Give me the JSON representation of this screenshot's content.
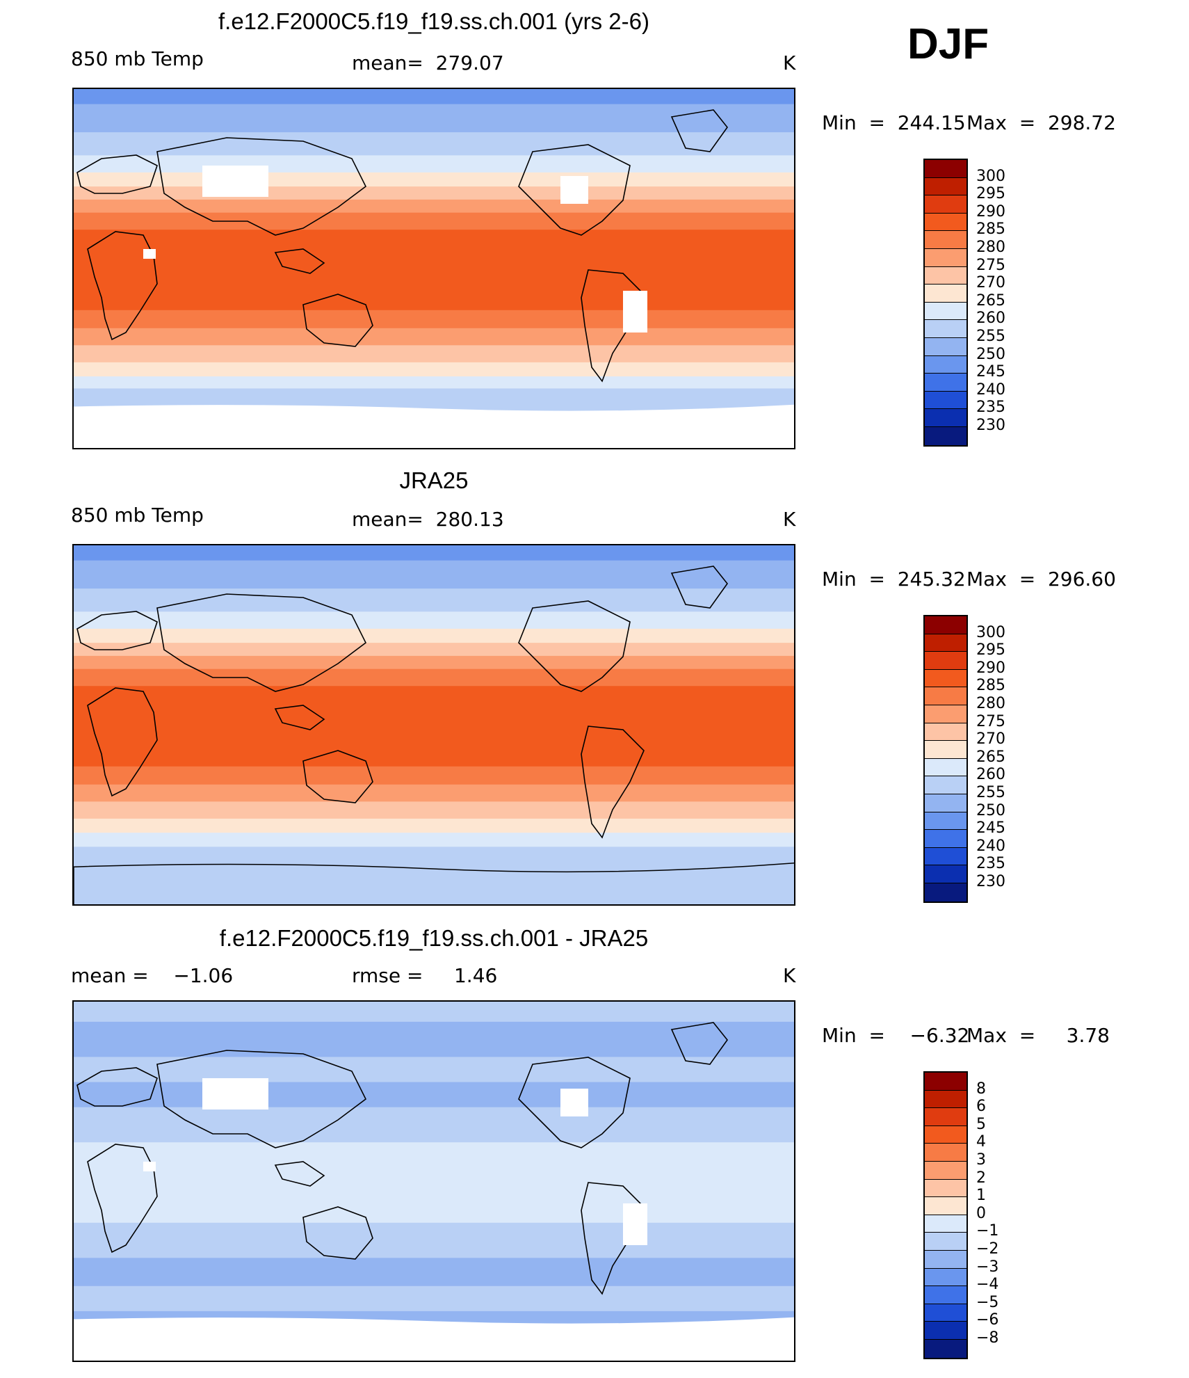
{
  "season": "DJF",
  "chart_data": [
    {
      "type": "heatmap",
      "title": "f.e12.F2000C5.f19_f19.ss.ch.001 (yrs 2-6)",
      "left_label": "850 mb Temp",
      "center_label": "mean=  279.07",
      "units": "K",
      "stats": {
        "min_label": "Min  =  244.15",
        "max_label": "Max  =  298.72",
        "min": 244.15,
        "max": 298.72,
        "mean": 279.07
      },
      "colorbar_levels": [
        "300",
        "295",
        "290",
        "285",
        "280",
        "275",
        "270",
        "265",
        "260",
        "255",
        "250",
        "245",
        "240",
        "235",
        "230"
      ],
      "colors": [
        "#8c0000",
        "#bf1f00",
        "#e03c10",
        "#f25a1e",
        "#f77b45",
        "#fb9d70",
        "#fdc4a6",
        "#fde6d2",
        "#dbe9fa",
        "#b9d0f5",
        "#93b4f1",
        "#6a96ee",
        "#3f72e8",
        "#1f4fd6",
        "#0b2fb0",
        "#081a7e"
      ],
      "zonal_profile": [
        {
          "lat": 90,
          "band": 11
        },
        {
          "lat": 75,
          "band": 10
        },
        {
          "lat": 62,
          "band": 9
        },
        {
          "lat": 52,
          "band": 8
        },
        {
          "lat": 45,
          "band": 7
        },
        {
          "lat": 38,
          "band": 6
        },
        {
          "lat": 32,
          "band": 5
        },
        {
          "lat": 25,
          "band": 4
        },
        {
          "lat": 15,
          "band": 3
        },
        {
          "lat": 0,
          "band": 3
        },
        {
          "lat": -15,
          "band": 3
        },
        {
          "lat": -25,
          "band": 4
        },
        {
          "lat": -33,
          "band": 5
        },
        {
          "lat": -42,
          "band": 6
        },
        {
          "lat": -50,
          "band": 7
        },
        {
          "lat": -56,
          "band": 8
        },
        {
          "lat": -62,
          "band": 9
        },
        {
          "lat": -70,
          "band": 9
        }
      ]
    },
    {
      "type": "heatmap",
      "title": "JRA25",
      "left_label": "850 mb Temp",
      "center_label": "mean=  280.13",
      "units": "K",
      "stats": {
        "min_label": "Min  =  245.32",
        "max_label": "Max  =  296.60",
        "min": 245.32,
        "max": 296.6,
        "mean": 280.13
      },
      "colorbar_levels": [
        "300",
        "295",
        "290",
        "285",
        "280",
        "275",
        "270",
        "265",
        "260",
        "255",
        "250",
        "245",
        "240",
        "235",
        "230"
      ],
      "colors": [
        "#8c0000",
        "#bf1f00",
        "#e03c10",
        "#f25a1e",
        "#f77b45",
        "#fb9d70",
        "#fdc4a6",
        "#fde6d2",
        "#dbe9fa",
        "#b9d0f5",
        "#93b4f1",
        "#6a96ee",
        "#3f72e8",
        "#1f4fd6",
        "#0b2fb0",
        "#081a7e"
      ],
      "zonal_profile": [
        {
          "lat": 90,
          "band": 11
        },
        {
          "lat": 75,
          "band": 10
        },
        {
          "lat": 62,
          "band": 9
        },
        {
          "lat": 52,
          "band": 8
        },
        {
          "lat": 45,
          "band": 7
        },
        {
          "lat": 38,
          "band": 6
        },
        {
          "lat": 32,
          "band": 5
        },
        {
          "lat": 25,
          "band": 4
        },
        {
          "lat": 15,
          "band": 3
        },
        {
          "lat": 0,
          "band": 3
        },
        {
          "lat": -15,
          "band": 3
        },
        {
          "lat": -25,
          "band": 4
        },
        {
          "lat": -33,
          "band": 5
        },
        {
          "lat": -42,
          "band": 6
        },
        {
          "lat": -50,
          "band": 7
        },
        {
          "lat": -56,
          "band": 8
        },
        {
          "lat": -64,
          "band": 9
        },
        {
          "lat": -75,
          "band": 9
        }
      ]
    },
    {
      "type": "heatmap",
      "title": "f.e12.F2000C5.f19_f19.ss.ch.001 - JRA25",
      "left_label": "mean =    −1.06",
      "center_label": "rmse =     1.46",
      "units": "K",
      "stats": {
        "min_label": "Min  =    −6.32",
        "max_label": "Max  =     3.78",
        "min": -6.32,
        "max": 3.78,
        "mean": -1.06,
        "rmse": 1.46
      },
      "colorbar_levels": [
        "8",
        "6",
        "5",
        "4",
        "3",
        "2",
        "1",
        "0",
        "−1",
        "−2",
        "−3",
        "−4",
        "−5",
        "−6",
        "−8"
      ],
      "colors": [
        "#8c0000",
        "#bf1f00",
        "#e03c10",
        "#f25a1e",
        "#f77b45",
        "#fb9d70",
        "#fdc4a6",
        "#fde6d2",
        "#dbe9fa",
        "#b9d0f5",
        "#93b4f1",
        "#6a96ee",
        "#3f72e8",
        "#1f4fd6",
        "#0b2fb0",
        "#081a7e"
      ],
      "zonal_profile": [
        {
          "lat": 90,
          "band": 9
        },
        {
          "lat": 70,
          "band": 10
        },
        {
          "lat": 55,
          "band": 9
        },
        {
          "lat": 45,
          "band": 10
        },
        {
          "lat": 30,
          "band": 9
        },
        {
          "lat": 10,
          "band": 8
        },
        {
          "lat": -10,
          "band": 8
        },
        {
          "lat": -30,
          "band": 9
        },
        {
          "lat": -45,
          "band": 10
        },
        {
          "lat": -58,
          "band": 9
        },
        {
          "lat": -70,
          "band": 10
        }
      ]
    }
  ]
}
